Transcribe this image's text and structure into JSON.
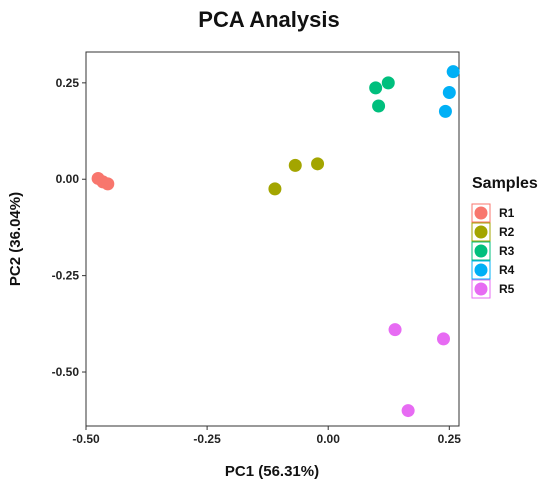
{
  "chart_data": {
    "type": "scatter",
    "title": "PCA Analysis",
    "xlabel": "PC1 (56.31%)",
    "ylabel": "PC2 (36.04%)",
    "xlim": [
      -0.5,
      0.27
    ],
    "ylim": [
      -0.64,
      0.33
    ],
    "xticks": [
      -0.5,
      -0.25,
      0.0,
      0.25
    ],
    "xtick_labels": [
      "-0.50",
      "-0.25",
      "0.00",
      "0.25"
    ],
    "yticks": [
      0.25,
      0.0,
      -0.25,
      -0.5
    ],
    "ytick_labels": [
      "0.25",
      "0.00",
      "-0.25",
      "-0.50"
    ],
    "grid": false,
    "legend": {
      "title": "Samples",
      "position": "right"
    },
    "series": [
      {
        "name": "R1",
        "color": "#F8766D",
        "points": [
          [
            -0.475,
            0.002
          ],
          [
            -0.465,
            -0.007
          ],
          [
            -0.455,
            -0.012
          ]
        ]
      },
      {
        "name": "R2",
        "color": "#A3A500",
        "points": [
          [
            -0.11,
            -0.025
          ],
          [
            -0.068,
            0.036
          ],
          [
            -0.022,
            0.04
          ]
        ]
      },
      {
        "name": "R3",
        "color": "#00BF7D",
        "points": [
          [
            0.098,
            0.237
          ],
          [
            0.124,
            0.25
          ],
          [
            0.104,
            0.19
          ]
        ]
      },
      {
        "name": "R4",
        "color": "#00B0F6",
        "points": [
          [
            0.258,
            0.279
          ],
          [
            0.25,
            0.225
          ],
          [
            0.242,
            0.176
          ]
        ]
      },
      {
        "name": "R5",
        "color": "#E76BF3",
        "points": [
          [
            0.138,
            -0.39
          ],
          [
            0.238,
            -0.414
          ],
          [
            0.165,
            -0.6
          ]
        ]
      }
    ]
  }
}
